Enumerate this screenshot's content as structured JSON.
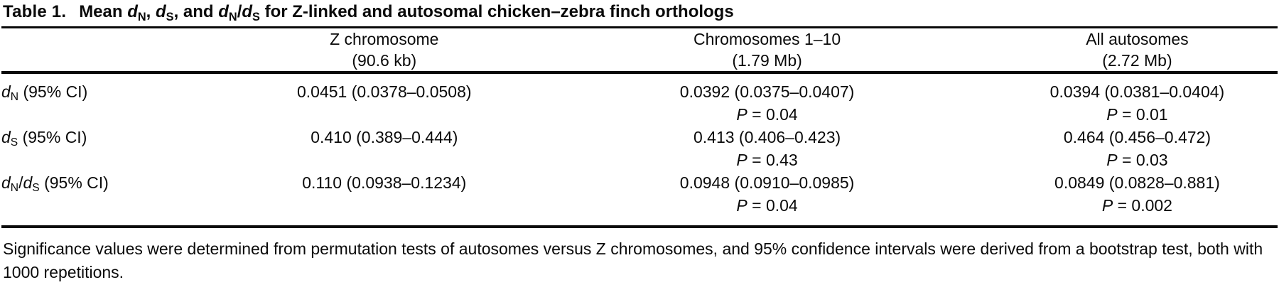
{
  "title": {
    "segments": [
      {
        "t": "Table 1.",
        "s": "lbl"
      },
      {
        "t": "Mean ",
        "s": ""
      },
      {
        "t": "d",
        "s": "i"
      },
      {
        "t": "N",
        "s": "sub"
      },
      {
        "t": ", ",
        "s": ""
      },
      {
        "t": "d",
        "s": "i"
      },
      {
        "t": "S",
        "s": "sub"
      },
      {
        "t": ", and ",
        "s": ""
      },
      {
        "t": "d",
        "s": "i"
      },
      {
        "t": "N",
        "s": "sub"
      },
      {
        "t": "/",
        "s": ""
      },
      {
        "t": "d",
        "s": "i"
      },
      {
        "t": "S",
        "s": "sub"
      },
      {
        "t": " for Z-linked and autosomal chicken–zebra finch orthologs",
        "s": ""
      }
    ]
  },
  "table": {
    "columns": [
      {
        "line1": "Z chromosome",
        "line2": "(90.6 kb)"
      },
      {
        "line1": "Chromosomes 1–10",
        "line2": "(1.79 Mb)"
      },
      {
        "line1": "All autosomes",
        "line2": "(2.72 Mb)"
      }
    ],
    "rows": [
      {
        "label_segments": [
          {
            "t": "d",
            "s": "i"
          },
          {
            "t": "N",
            "s": "sub"
          },
          {
            "t": " (95% CI)",
            "s": ""
          }
        ],
        "cells": [
          {
            "value": "0.0451 (0.0378–0.0508)"
          },
          {
            "value": "0.0392 (0.0375–0.0407)",
            "p_symbol": "P",
            "p_rest": " = 0.04"
          },
          {
            "value": "0.0394 (0.0381–0.0404)",
            "p_symbol": "P",
            "p_rest": " = 0.01"
          }
        ]
      },
      {
        "label_segments": [
          {
            "t": "d",
            "s": "i"
          },
          {
            "t": "S",
            "s": "sub"
          },
          {
            "t": " (95% CI)",
            "s": ""
          }
        ],
        "cells": [
          {
            "value": "0.410 (0.389–0.444)"
          },
          {
            "value": "0.413 (0.406–0.423)",
            "p_symbol": "P",
            "p_rest": " = 0.43"
          },
          {
            "value": "0.464 (0.456–0.472)",
            "p_symbol": "P",
            "p_rest": " = 0.03"
          }
        ]
      },
      {
        "label_segments": [
          {
            "t": "d",
            "s": "i"
          },
          {
            "t": "N",
            "s": "sub"
          },
          {
            "t": "/",
            "s": ""
          },
          {
            "t": "d",
            "s": "i"
          },
          {
            "t": "S",
            "s": "sub"
          },
          {
            "t": " (95% CI)",
            "s": ""
          }
        ],
        "cells": [
          {
            "value": "0.110 (0.0938–0.1234)"
          },
          {
            "value": "0.0948 (0.0910–0.0985)",
            "p_symbol": "P",
            "p_rest": " = 0.04"
          },
          {
            "value": "0.0849 (0.0828–0.881)",
            "p_symbol": "P",
            "p_rest": " = 0.002"
          }
        ]
      }
    ]
  },
  "footnote": "Significance values were determined from permutation tests of autosomes versus Z chromosomes, and 95% confidence intervals were derived from a bootstrap test, both with 1000 repetitions."
}
